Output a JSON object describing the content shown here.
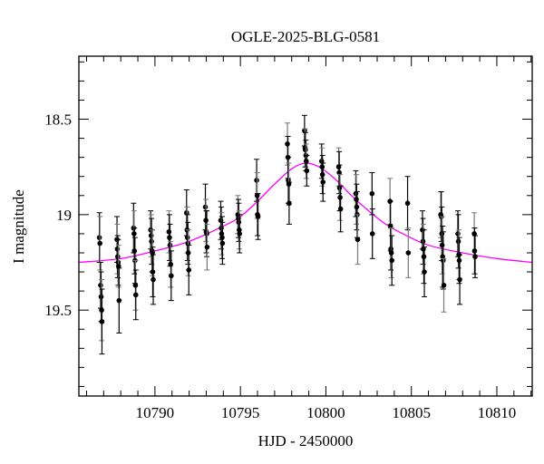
{
  "chart_data": {
    "type": "scatter",
    "title": "OGLE-2025-BLG-0581",
    "xlabel": "HJD - 2450000",
    "ylabel": "I magnitude",
    "xlim": [
      10785.55,
      10812.07
    ],
    "ylim": [
      19.95,
      18.17
    ],
    "y_inverted": true,
    "xticks": [
      10790,
      10795,
      10800,
      10805,
      10810
    ],
    "xtick_labels": [
      "10790",
      "10795",
      "10800",
      "10805",
      "10810"
    ],
    "yticks": [
      18.5,
      19,
      19.5
    ],
    "ytick_labels": [
      "18.5",
      "19",
      "19.5"
    ],
    "x_minor_step": 1,
    "y_minor_step": 0.1,
    "grid": false,
    "colors": {
      "data": "#000000",
      "model": "#ff00ff",
      "errorbar_alt": "#777777"
    },
    "series": [
      {
        "name": "data",
        "points": [
          [
            10786.75,
            19.12,
            0.13
          ],
          [
            10786.78,
            19.15,
            0.14
          ],
          [
            10786.82,
            19.37,
            0.12
          ],
          [
            10786.85,
            19.43,
            0.13
          ],
          [
            10786.88,
            19.5,
            0.16
          ],
          [
            10786.9,
            19.56,
            0.17
          ],
          [
            10787.78,
            19.13,
            0.12
          ],
          [
            10787.8,
            19.18,
            0.13
          ],
          [
            10787.82,
            19.22,
            0.11
          ],
          [
            10787.85,
            19.25,
            0.12
          ],
          [
            10787.87,
            19.27,
            0.11
          ],
          [
            10787.9,
            19.45,
            0.17
          ],
          [
            10788.75,
            19.07,
            0.13
          ],
          [
            10788.78,
            19.1,
            0.12
          ],
          [
            10788.8,
            19.19,
            0.12
          ],
          [
            10788.83,
            19.24,
            0.12
          ],
          [
            10788.86,
            19.37,
            0.13
          ],
          [
            10788.88,
            19.42,
            0.13
          ],
          [
            10789.75,
            19.08,
            0.1
          ],
          [
            10789.78,
            19.11,
            0.11
          ],
          [
            10789.8,
            19.14,
            0.12
          ],
          [
            10789.83,
            19.19,
            0.11
          ],
          [
            10789.85,
            19.2,
            0.12
          ],
          [
            10789.87,
            19.3,
            0.13
          ],
          [
            10789.9,
            19.34,
            0.13
          ],
          [
            10790.82,
            19.09,
            0.11
          ],
          [
            10790.85,
            19.12,
            0.12
          ],
          [
            10790.88,
            19.16,
            0.11
          ],
          [
            10790.92,
            19.26,
            0.12
          ],
          [
            10790.95,
            19.32,
            0.13
          ],
          [
            10791.85,
            18.99,
            0.12
          ],
          [
            10791.88,
            19.08,
            0.12
          ],
          [
            10791.9,
            19.12,
            0.12
          ],
          [
            10791.93,
            19.15,
            0.11
          ],
          [
            10791.95,
            19.2,
            0.12
          ],
          [
            10791.98,
            19.29,
            0.13
          ],
          [
            10792.95,
            18.96,
            0.12
          ],
          [
            10792.98,
            19.03,
            0.11
          ],
          [
            10793.0,
            19.09,
            0.11
          ],
          [
            10793.03,
            19.1,
            0.12
          ],
          [
            10793.05,
            19.17,
            0.12
          ],
          [
            10793.85,
            19.03,
            0.1
          ],
          [
            10793.88,
            19.07,
            0.11
          ],
          [
            10793.9,
            19.1,
            0.11
          ],
          [
            10793.93,
            19.12,
            0.11
          ],
          [
            10793.95,
            19.15,
            0.11
          ],
          [
            10794.85,
            19.0,
            0.1
          ],
          [
            10794.88,
            19.02,
            0.1
          ],
          [
            10794.9,
            19.04,
            0.1
          ],
          [
            10794.93,
            19.08,
            0.1
          ],
          [
            10794.95,
            19.1,
            0.1
          ],
          [
            10795.95,
            18.82,
            0.11
          ],
          [
            10795.98,
            18.9,
            0.12
          ],
          [
            10796.0,
            19.0,
            0.11
          ],
          [
            10796.03,
            19.01,
            0.12
          ],
          [
            10797.75,
            18.63,
            0.11
          ],
          [
            10797.78,
            18.7,
            0.11
          ],
          [
            10797.8,
            18.82,
            0.12
          ],
          [
            10797.83,
            18.84,
            0.11
          ],
          [
            10797.85,
            18.94,
            0.11
          ],
          [
            10798.75,
            18.56,
            0.08
          ],
          [
            10798.78,
            18.65,
            0.1
          ],
          [
            10798.8,
            18.66,
            0.09
          ],
          [
            10798.83,
            18.69,
            0.08
          ],
          [
            10798.85,
            18.72,
            0.09
          ],
          [
            10798.88,
            18.77,
            0.08
          ],
          [
            10799.75,
            18.72,
            0.09
          ],
          [
            10799.78,
            18.75,
            0.1
          ],
          [
            10799.8,
            18.79,
            0.1
          ],
          [
            10799.83,
            18.83,
            0.1
          ],
          [
            10800.75,
            18.75,
            0.1
          ],
          [
            10800.78,
            18.78,
            0.11
          ],
          [
            10800.8,
            18.86,
            0.12
          ],
          [
            10800.83,
            18.91,
            0.12
          ],
          [
            10800.86,
            18.97,
            0.12
          ],
          [
            10801.75,
            18.89,
            0.12
          ],
          [
            10801.78,
            18.92,
            0.13
          ],
          [
            10801.8,
            18.96,
            0.12
          ],
          [
            10801.83,
            19.0,
            0.12
          ],
          [
            10801.86,
            19.13,
            0.13
          ],
          [
            10802.7,
            18.89,
            0.11
          ],
          [
            10802.72,
            19.1,
            0.13
          ],
          [
            10803.75,
            18.93,
            0.12
          ],
          [
            10803.78,
            19.06,
            0.13
          ],
          [
            10803.8,
            19.18,
            0.11
          ],
          [
            10803.83,
            19.2,
            0.13
          ],
          [
            10803.86,
            19.24,
            0.13
          ],
          [
            10804.78,
            18.94,
            0.14
          ],
          [
            10804.82,
            19.2,
            0.13
          ],
          [
            10805.65,
            19.08,
            0.1
          ],
          [
            10805.68,
            19.14,
            0.12
          ],
          [
            10805.7,
            19.18,
            0.13
          ],
          [
            10805.73,
            19.22,
            0.14
          ],
          [
            10805.76,
            19.3,
            0.13
          ],
          [
            10806.72,
            19.0,
            0.12
          ],
          [
            10806.75,
            19.01,
            0.13
          ],
          [
            10806.78,
            19.1,
            0.14
          ],
          [
            10806.8,
            19.16,
            0.15
          ],
          [
            10806.83,
            19.22,
            0.16
          ],
          [
            10806.86,
            19.24,
            0.15
          ],
          [
            10806.9,
            19.37,
            0.14
          ],
          [
            10807.72,
            19.1,
            0.12
          ],
          [
            10807.75,
            19.14,
            0.14
          ],
          [
            10807.78,
            19.21,
            0.13
          ],
          [
            10807.8,
            19.24,
            0.12
          ],
          [
            10807.83,
            19.34,
            0.13
          ],
          [
            10808.68,
            19.1,
            0.11
          ],
          [
            10808.7,
            19.19,
            0.12
          ],
          [
            10808.73,
            19.22,
            0.11
          ]
        ]
      },
      {
        "name": "model",
        "points": [
          [
            10785.55,
            19.25
          ],
          [
            10788,
            19.23
          ],
          [
            10790,
            19.19
          ],
          [
            10792,
            19.14
          ],
          [
            10794,
            19.06
          ],
          [
            10795,
            19.01
          ],
          [
            10796,
            18.93
          ],
          [
            10797,
            18.84
          ],
          [
            10798,
            18.76
          ],
          [
            10798.8,
            18.73
          ],
          [
            10799.6,
            18.75
          ],
          [
            10800.5,
            18.81
          ],
          [
            10801.5,
            18.9
          ],
          [
            10802.5,
            18.98
          ],
          [
            10803.5,
            19.05
          ],
          [
            10804.5,
            19.1
          ],
          [
            10806,
            19.16
          ],
          [
            10808,
            19.2
          ],
          [
            10810,
            19.23
          ],
          [
            10812.07,
            19.25
          ]
        ]
      }
    ]
  }
}
